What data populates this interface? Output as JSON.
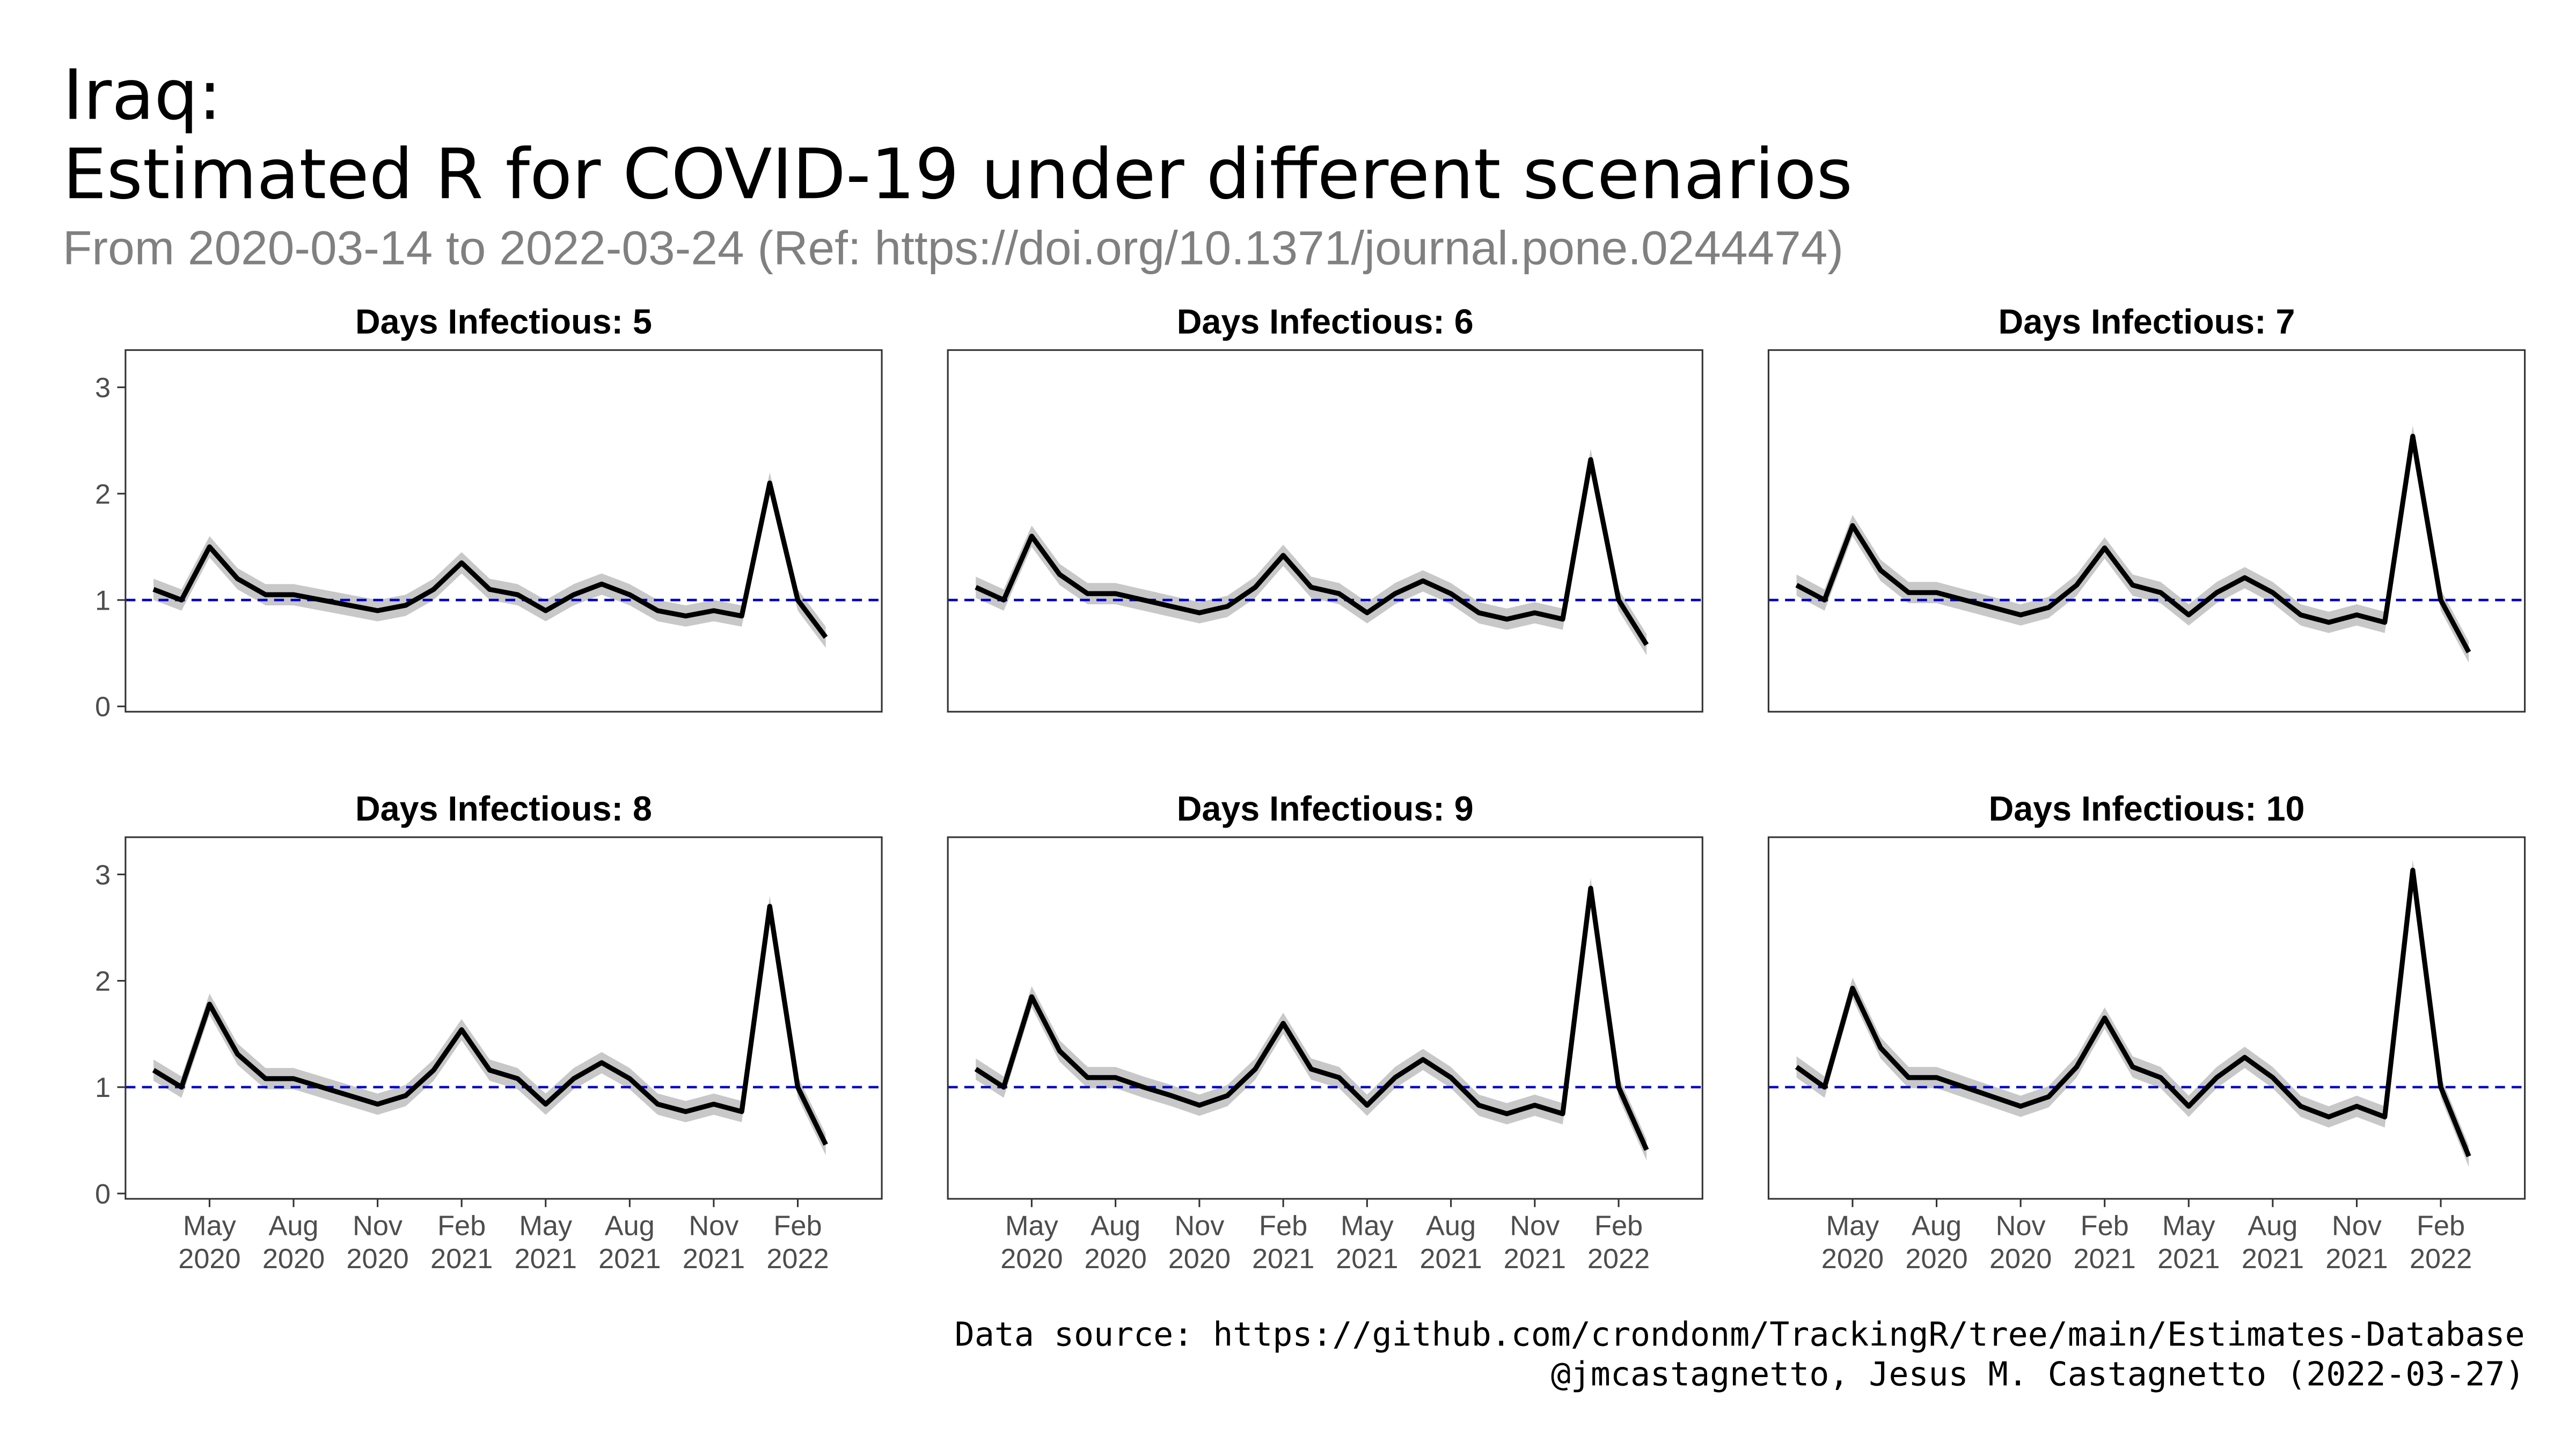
{
  "title": [
    "Iraq:",
    "Estimated R for COVID-19 under different scenarios"
  ],
  "subtitle": "From 2020-03-14 to 2022-03-24 (Ref: https://doi.org/10.1371/journal.pone.0244474)",
  "caption": [
    "Data source: https://github.com/crondonm/TrackingR/tree/main/Estimates-Database",
    "@jmcastagnetto, Jesus M. Castagnetto (2022-03-27)"
  ],
  "chart_data": [
    {
      "type": "line",
      "title": "Days Infectious: 5",
      "color": "#000000",
      "hline": 1,
      "hline_color": "#0000cc",
      "ribbon": 0.1,
      "x": [
        "2020-03",
        "2020-04",
        "2020-05",
        "2020-06",
        "2020-07",
        "2020-08",
        "2020-09",
        "2020-10",
        "2020-11",
        "2020-12",
        "2021-01",
        "2021-02",
        "2021-03",
        "2021-04",
        "2021-05",
        "2021-06",
        "2021-07",
        "2021-08",
        "2021-09",
        "2021-10",
        "2021-11",
        "2021-12",
        "2022-01",
        "2022-02",
        "2022-03"
      ],
      "values": [
        1.1,
        1.0,
        1.5,
        1.2,
        1.05,
        1.05,
        1.0,
        0.95,
        0.9,
        0.95,
        1.1,
        1.35,
        1.1,
        1.05,
        0.9,
        1.05,
        1.15,
        1.05,
        0.9,
        0.85,
        0.9,
        0.85,
        2.1,
        1.0,
        0.65
      ],
      "xlim": [
        "2020-02",
        "2022-05"
      ],
      "ylim": [
        -0.05,
        3.35
      ],
      "yticks": [
        0,
        1,
        2,
        3
      ]
    },
    {
      "type": "line",
      "title": "Days Infectious: 6",
      "color": "#000000",
      "hline": 1,
      "hline_color": "#0000cc",
      "ribbon": 0.1,
      "x": [
        "2020-03",
        "2020-04",
        "2020-05",
        "2020-06",
        "2020-07",
        "2020-08",
        "2020-09",
        "2020-10",
        "2020-11",
        "2020-12",
        "2021-01",
        "2021-02",
        "2021-03",
        "2021-04",
        "2021-05",
        "2021-06",
        "2021-07",
        "2021-08",
        "2021-09",
        "2021-10",
        "2021-11",
        "2021-12",
        "2022-01",
        "2022-02",
        "2022-03"
      ],
      "values": [
        1.12,
        1.0,
        1.6,
        1.24,
        1.06,
        1.06,
        1.0,
        0.94,
        0.88,
        0.94,
        1.12,
        1.42,
        1.12,
        1.06,
        0.88,
        1.06,
        1.18,
        1.06,
        0.88,
        0.82,
        0.88,
        0.82,
        2.32,
        1.0,
        0.58
      ],
      "xlim": [
        "2020-02",
        "2022-05"
      ],
      "ylim": [
        -0.05,
        3.35
      ]
    },
    {
      "type": "line",
      "title": "Days Infectious: 7",
      "color": "#000000",
      "hline": 1,
      "hline_color": "#0000cc",
      "ribbon": 0.1,
      "x": [
        "2020-03",
        "2020-04",
        "2020-05",
        "2020-06",
        "2020-07",
        "2020-08",
        "2020-09",
        "2020-10",
        "2020-11",
        "2020-12",
        "2021-01",
        "2021-02",
        "2021-03",
        "2021-04",
        "2021-05",
        "2021-06",
        "2021-07",
        "2021-08",
        "2021-09",
        "2021-10",
        "2021-11",
        "2021-12",
        "2022-01",
        "2022-02",
        "2022-03"
      ],
      "values": [
        1.14,
        1.0,
        1.7,
        1.28,
        1.07,
        1.07,
        1.0,
        0.93,
        0.86,
        0.93,
        1.14,
        1.49,
        1.14,
        1.07,
        0.86,
        1.07,
        1.21,
        1.07,
        0.86,
        0.79,
        0.86,
        0.79,
        2.54,
        1.0,
        0.51
      ],
      "xlim": [
        "2020-02",
        "2022-05"
      ],
      "ylim": [
        -0.05,
        3.35
      ]
    },
    {
      "type": "line",
      "title": "Days Infectious: 8",
      "color": "#000000",
      "hline": 1,
      "hline_color": "#0000cc",
      "ribbon": 0.1,
      "x": [
        "2020-03",
        "2020-04",
        "2020-05",
        "2020-06",
        "2020-07",
        "2020-08",
        "2020-09",
        "2020-10",
        "2020-11",
        "2020-12",
        "2021-01",
        "2021-02",
        "2021-03",
        "2021-04",
        "2021-05",
        "2021-06",
        "2021-07",
        "2021-08",
        "2021-09",
        "2021-10",
        "2021-11",
        "2021-12",
        "2022-01",
        "2022-02",
        "2022-03"
      ],
      "values": [
        1.16,
        1.0,
        1.78,
        1.31,
        1.08,
        1.08,
        1.0,
        0.92,
        0.84,
        0.92,
        1.16,
        1.54,
        1.16,
        1.08,
        0.84,
        1.08,
        1.23,
        1.08,
        0.84,
        0.77,
        0.84,
        0.77,
        2.7,
        1.0,
        0.46
      ],
      "xlim": [
        "2020-02",
        "2022-05"
      ],
      "ylim": [
        -0.05,
        3.35
      ],
      "yticks": [
        0,
        1,
        2,
        3
      ],
      "xticks": [
        {
          "value": "2020-05",
          "label": "May 2020"
        },
        {
          "value": "2020-08",
          "label": "Aug 2020"
        },
        {
          "value": "2020-11",
          "label": "Nov 2020"
        },
        {
          "value": "2021-02",
          "label": "Feb 2021"
        },
        {
          "value": "2021-05",
          "label": "May 2021"
        },
        {
          "value": "2021-08",
          "label": "Aug 2021"
        },
        {
          "value": "2021-11",
          "label": "Nov 2021"
        },
        {
          "value": "2022-02",
          "label": "Feb 2022"
        }
      ]
    },
    {
      "type": "line",
      "title": "Days Infectious: 9",
      "color": "#000000",
      "hline": 1,
      "hline_color": "#0000cc",
      "ribbon": 0.1,
      "x": [
        "2020-03",
        "2020-04",
        "2020-05",
        "2020-06",
        "2020-07",
        "2020-08",
        "2020-09",
        "2020-10",
        "2020-11",
        "2020-12",
        "2021-01",
        "2021-02",
        "2021-03",
        "2021-04",
        "2021-05",
        "2021-06",
        "2021-07",
        "2021-08",
        "2021-09",
        "2021-10",
        "2021-11",
        "2021-12",
        "2022-01",
        "2022-02",
        "2022-03"
      ],
      "values": [
        1.17,
        1.0,
        1.85,
        1.34,
        1.09,
        1.09,
        1.0,
        0.92,
        0.83,
        0.92,
        1.17,
        1.6,
        1.17,
        1.09,
        0.83,
        1.09,
        1.26,
        1.09,
        0.83,
        0.75,
        0.83,
        0.75,
        2.87,
        1.0,
        0.41
      ],
      "xlim": [
        "2020-02",
        "2022-05"
      ],
      "ylim": [
        -0.05,
        3.35
      ],
      "xticks": [
        {
          "value": "2020-05",
          "label": "May 2020"
        },
        {
          "value": "2020-08",
          "label": "Aug 2020"
        },
        {
          "value": "2020-11",
          "label": "Nov 2020"
        },
        {
          "value": "2021-02",
          "label": "Feb 2021"
        },
        {
          "value": "2021-05",
          "label": "May 2021"
        },
        {
          "value": "2021-08",
          "label": "Aug 2021"
        },
        {
          "value": "2021-11",
          "label": "Nov 2021"
        },
        {
          "value": "2022-02",
          "label": "Feb 2022"
        }
      ]
    },
    {
      "type": "line",
      "title": "Days Infectious: 10",
      "color": "#000000",
      "hline": 1,
      "hline_color": "#0000cc",
      "ribbon": 0.1,
      "x": [
        "2020-03",
        "2020-04",
        "2020-05",
        "2020-06",
        "2020-07",
        "2020-08",
        "2020-09",
        "2020-10",
        "2020-11",
        "2020-12",
        "2021-01",
        "2021-02",
        "2021-03",
        "2021-04",
        "2021-05",
        "2021-06",
        "2021-07",
        "2021-08",
        "2021-09",
        "2021-10",
        "2021-11",
        "2021-12",
        "2022-01",
        "2022-02",
        "2022-03"
      ],
      "values": [
        1.19,
        1.0,
        1.93,
        1.37,
        1.09,
        1.09,
        1.0,
        0.91,
        0.82,
        0.91,
        1.19,
        1.65,
        1.19,
        1.09,
        0.82,
        1.09,
        1.28,
        1.09,
        0.82,
        0.72,
        0.82,
        0.72,
        3.04,
        1.0,
        0.35
      ],
      "xlim": [
        "2020-02",
        "2022-05"
      ],
      "ylim": [
        -0.05,
        3.35
      ],
      "xticks": [
        {
          "value": "2020-05",
          "label": "May 2020"
        },
        {
          "value": "2020-08",
          "label": "Aug 2020"
        },
        {
          "value": "2020-11",
          "label": "Nov 2020"
        },
        {
          "value": "2021-02",
          "label": "Feb 2021"
        },
        {
          "value": "2021-05",
          "label": "May 2021"
        },
        {
          "value": "2021-08",
          "label": "Aug 2021"
        },
        {
          "value": "2021-11",
          "label": "Nov 2021"
        },
        {
          "value": "2022-02",
          "label": "Feb 2022"
        }
      ]
    }
  ]
}
